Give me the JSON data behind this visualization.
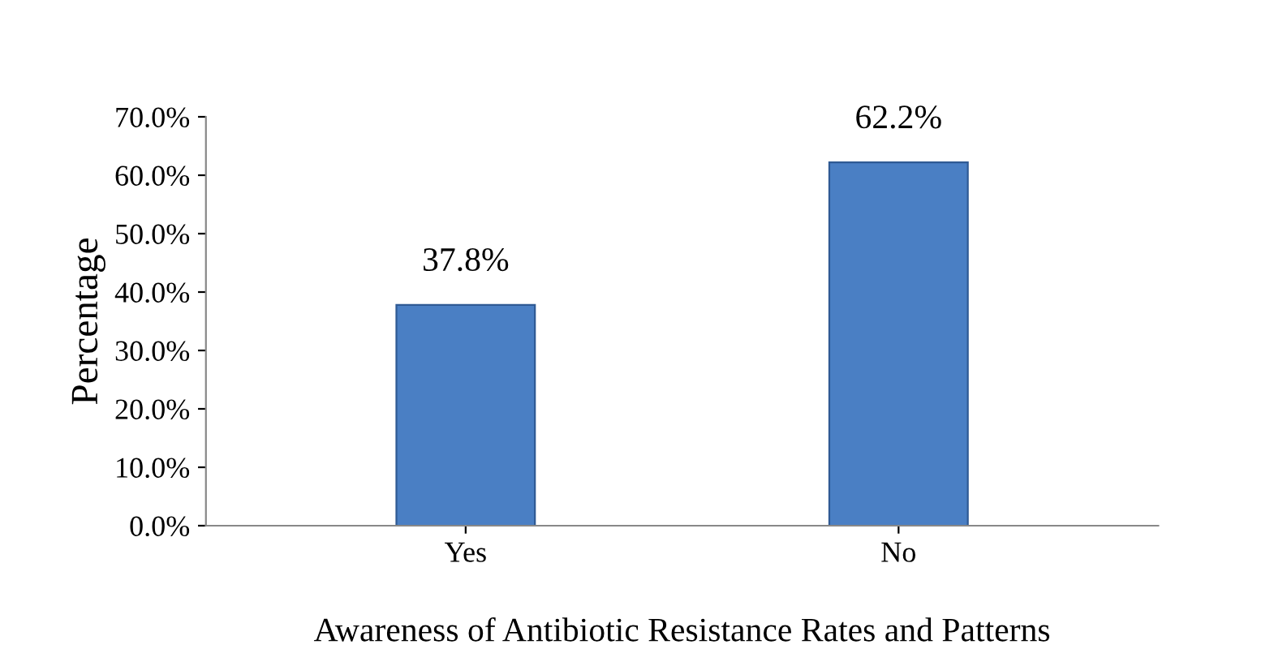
{
  "chart_data": {
    "type": "bar",
    "xlabel": "Awareness of Antibiotic Resistance Rates and Patterns",
    "ylabel": "Percentage",
    "categories": [
      "Yes",
      "No"
    ],
    "values": [
      37.8,
      62.2
    ],
    "value_labels": [
      "37.8%",
      "62.2%"
    ],
    "color": "#4a7fc4",
    "ylim": [
      0,
      70
    ],
    "yticks": [
      {
        "value": 0,
        "label": "0.0%"
      },
      {
        "value": 10,
        "label": "10.0%"
      },
      {
        "value": 20,
        "label": "20.0%"
      },
      {
        "value": 30,
        "label": "30.0%"
      },
      {
        "value": 40,
        "label": "40.0%"
      },
      {
        "value": 50,
        "label": "50.0%"
      },
      {
        "value": 60,
        "label": "60.0%"
      },
      {
        "value": 70,
        "label": "70.0%"
      }
    ],
    "grid": false
  }
}
